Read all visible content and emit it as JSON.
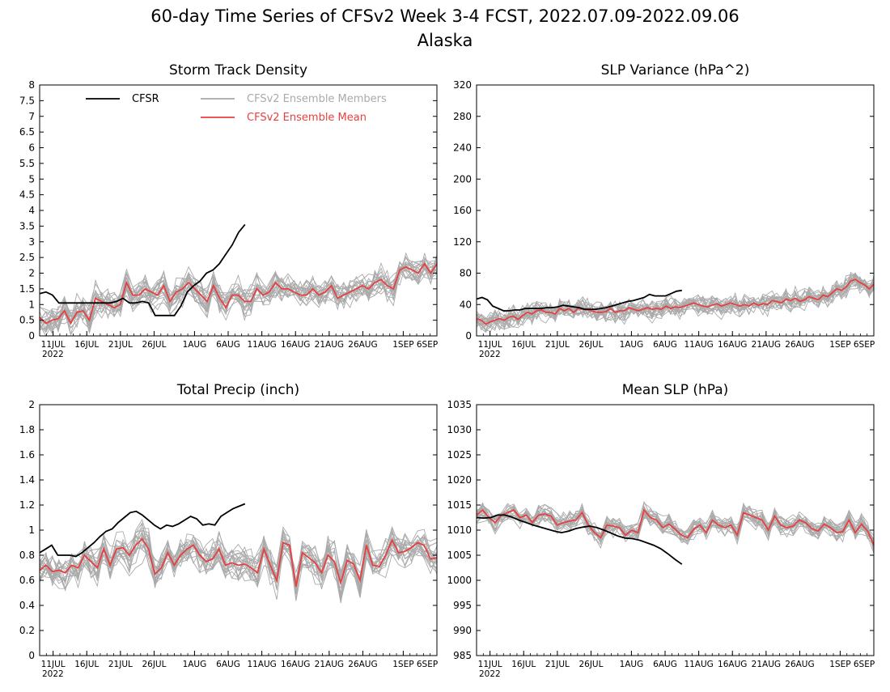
{
  "figure": {
    "title": "60-day Time Series of CFSv2 Week 3-4 FCST, 2022.07.09-2022.09.06",
    "subtitle": "Alaska"
  },
  "colors": {
    "cfsr": "#000000",
    "members": "#aaaaaa",
    "mean": "#e84040",
    "axis": "#000000"
  },
  "legend": {
    "cfsr": "CFSR",
    "members": "CFSv2 Ensemble Members",
    "mean": "CFSv2 Ensemble Mean"
  },
  "x_axis": {
    "ticks": [
      {
        "day": 2,
        "label": "11JUL"
      },
      {
        "day": 7,
        "label": "16JUL"
      },
      {
        "day": 12,
        "label": "21JUL"
      },
      {
        "day": 17,
        "label": "26JUL"
      },
      {
        "day": 23,
        "label": "1AUG"
      },
      {
        "day": 28,
        "label": "6AUG"
      },
      {
        "day": 33,
        "label": "11AUG"
      },
      {
        "day": 38,
        "label": "16AUG"
      },
      {
        "day": 43,
        "label": "21AUG"
      },
      {
        "day": 48,
        "label": "26AUG"
      },
      {
        "day": 54,
        "label": "1SEP"
      },
      {
        "day": 59,
        "label": "6SEP"
      }
    ],
    "year_label": "2022"
  },
  "chart_data": [
    {
      "type": "line",
      "title": "Storm Track Density",
      "show_legend": true,
      "ylim": [
        0,
        8
      ],
      "yticks": [
        "0",
        "0.5",
        "1",
        "1.5",
        "2",
        "2.5",
        "3",
        "3.5",
        "4",
        "4.5",
        "5",
        "5.5",
        "6",
        "6.5",
        "7",
        "7.5",
        "8"
      ],
      "x_start": "2022-07-09",
      "cfsr": [
        1.35,
        1.4,
        1.3,
        1.05,
        1.05,
        1.05,
        1.05,
        1.05,
        1.05,
        1.05,
        1.05,
        1.05,
        1.1,
        1.2,
        1.05,
        1.05,
        1.1,
        1.05,
        0.65,
        0.65,
        0.65,
        0.65,
        0.95,
        1.4,
        1.6,
        1.75,
        2.0,
        2.1,
        2.3,
        2.6,
        2.9,
        3.3,
        3.55
      ],
      "mean": [
        0.6,
        0.4,
        0.5,
        0.55,
        0.8,
        0.4,
        0.75,
        0.8,
        0.5,
        1.2,
        1.1,
        1.0,
        0.9,
        1.0,
        1.7,
        1.3,
        1.3,
        1.5,
        1.4,
        1.3,
        1.6,
        1.1,
        1.4,
        1.5,
        1.7,
        1.5,
        1.3,
        1.1,
        1.6,
        1.2,
        0.9,
        1.3,
        1.3,
        1.1,
        1.1,
        1.5,
        1.3,
        1.4,
        1.7,
        1.5,
        1.5,
        1.4,
        1.3,
        1.3,
        1.5,
        1.3,
        1.4,
        1.6,
        1.2,
        1.3,
        1.4,
        1.5,
        1.6,
        1.5,
        1.7,
        1.8,
        1.6,
        1.5,
        2.1,
        2.2,
        2.1,
        2.0,
        2.3,
        2.0,
        2.3
      ],
      "member_spread": 0.45,
      "member_count": 20
    },
    {
      "type": "line",
      "title": "SLP Variance (hPa^2)",
      "show_legend": false,
      "ylim": [
        0,
        320
      ],
      "yticks": [
        "0",
        "40",
        "80",
        "120",
        "160",
        "200",
        "240",
        "280",
        "320"
      ],
      "x_start": "2022-07-09",
      "cfsr": [
        47,
        49,
        46,
        38,
        35,
        32,
        32,
        33,
        33,
        35,
        35,
        35,
        35,
        36,
        36,
        37,
        39,
        38,
        37,
        36,
        34,
        34,
        34,
        35,
        36,
        38,
        40,
        42,
        44,
        45,
        47,
        49,
        53,
        51,
        51,
        51,
        54,
        57,
        58
      ],
      "mean": [
        22,
        20,
        15,
        18,
        20,
        22,
        20,
        24,
        25,
        21,
        26,
        30,
        28,
        32,
        33,
        30,
        30,
        28,
        35,
        32,
        35,
        30,
        35,
        34,
        33,
        32,
        30,
        30,
        31,
        35,
        30,
        32,
        32,
        36,
        34,
        32,
        34,
        36,
        34,
        35,
        34,
        38,
        35,
        37,
        36,
        38,
        40,
        42,
        40,
        38,
        37,
        39,
        41,
        38,
        40,
        42,
        40,
        38,
        40,
        38,
        42,
        39,
        41,
        40,
        45,
        44,
        42,
        47,
        45,
        48,
        44,
        46,
        50,
        48,
        46,
        52,
        50,
        55,
        60,
        58,
        62,
        70,
        72,
        68,
        65,
        60,
        66
      ],
      "member_spread": 12,
      "member_count": 20
    },
    {
      "type": "line",
      "title": "Total Precip (inch)",
      "show_legend": false,
      "ylim": [
        0,
        2
      ],
      "yticks": [
        "0",
        "0.2",
        "0.4",
        "0.6",
        "0.8",
        "1",
        "1.2",
        "1.4",
        "1.6",
        "1.8",
        "2"
      ],
      "x_start": "2022-07-09",
      "cfsr": [
        0.82,
        0.85,
        0.88,
        0.8,
        0.8,
        0.8,
        0.79,
        0.82,
        0.86,
        0.9,
        0.95,
        0.99,
        1.01,
        1.06,
        1.1,
        1.14,
        1.15,
        1.12,
        1.08,
        1.04,
        1.01,
        1.04,
        1.03,
        1.05,
        1.08,
        1.11,
        1.09,
        1.04,
        1.05,
        1.04,
        1.11,
        1.14,
        1.17,
        1.19,
        1.21
      ],
      "mean": [
        0.68,
        0.72,
        0.67,
        0.68,
        0.66,
        0.72,
        0.7,
        0.8,
        0.75,
        0.7,
        0.85,
        0.72,
        0.85,
        0.86,
        0.8,
        0.88,
        0.93,
        0.85,
        0.65,
        0.7,
        0.82,
        0.72,
        0.8,
        0.85,
        0.88,
        0.8,
        0.75,
        0.77,
        0.85,
        0.72,
        0.74,
        0.72,
        0.73,
        0.7,
        0.66,
        0.85,
        0.72,
        0.6,
        0.9,
        0.88,
        0.55,
        0.82,
        0.78,
        0.74,
        0.66,
        0.8,
        0.75,
        0.58,
        0.76,
        0.73,
        0.6,
        0.88,
        0.72,
        0.71,
        0.8,
        0.92,
        0.82,
        0.83,
        0.86,
        0.9,
        0.88,
        0.77,
        0.78
      ],
      "member_spread": 0.13,
      "member_count": 20
    },
    {
      "type": "line",
      "title": "Mean SLP (hPa)",
      "show_legend": false,
      "ylim": [
        985,
        1035
      ],
      "yticks": [
        "985",
        "990",
        "995",
        "1000",
        "1005",
        "1010",
        "1015",
        "1020",
        "1025",
        "1030",
        "1035"
      ],
      "x_start": "2022-07-09",
      "cfsr": [
        1012.5,
        1012.4,
        1012.5,
        1013,
        1013,
        1012.6,
        1012,
        1011.5,
        1011,
        1010.6,
        1010.2,
        1009.8,
        1009.5,
        1009.8,
        1010.3,
        1010.6,
        1010.8,
        1010.5,
        1010,
        1009.4,
        1008.8,
        1008.4,
        1008.3,
        1008,
        1007.5,
        1007,
        1006.3,
        1005.3,
        1004.2,
        1003.2
      ],
      "mean": [
        1013,
        1014,
        1012.5,
        1011.5,
        1013,
        1013.5,
        1014,
        1012.5,
        1013,
        1011.5,
        1013,
        1013.2,
        1012.8,
        1011,
        1011.5,
        1011.8,
        1012,
        1013.5,
        1011,
        1009.5,
        1008.5,
        1011,
        1010.8,
        1010.5,
        1009,
        1010,
        1009.5,
        1014,
        1012.5,
        1012,
        1010.5,
        1011.2,
        1010.2,
        1009,
        1008.5,
        1010.2,
        1011,
        1009.5,
        1012,
        1011,
        1010.5,
        1011,
        1009,
        1013.5,
        1013,
        1012.5,
        1012,
        1010,
        1012.8,
        1011,
        1010.5,
        1010.8,
        1012,
        1011.5,
        1010.3,
        1009.8,
        1011.2,
        1010.5,
        1009.5,
        1009.7,
        1012,
        1009.5,
        1011.2,
        1009.8,
        1007
      ],
      "member_spread": 1.8,
      "member_count": 20
    }
  ]
}
